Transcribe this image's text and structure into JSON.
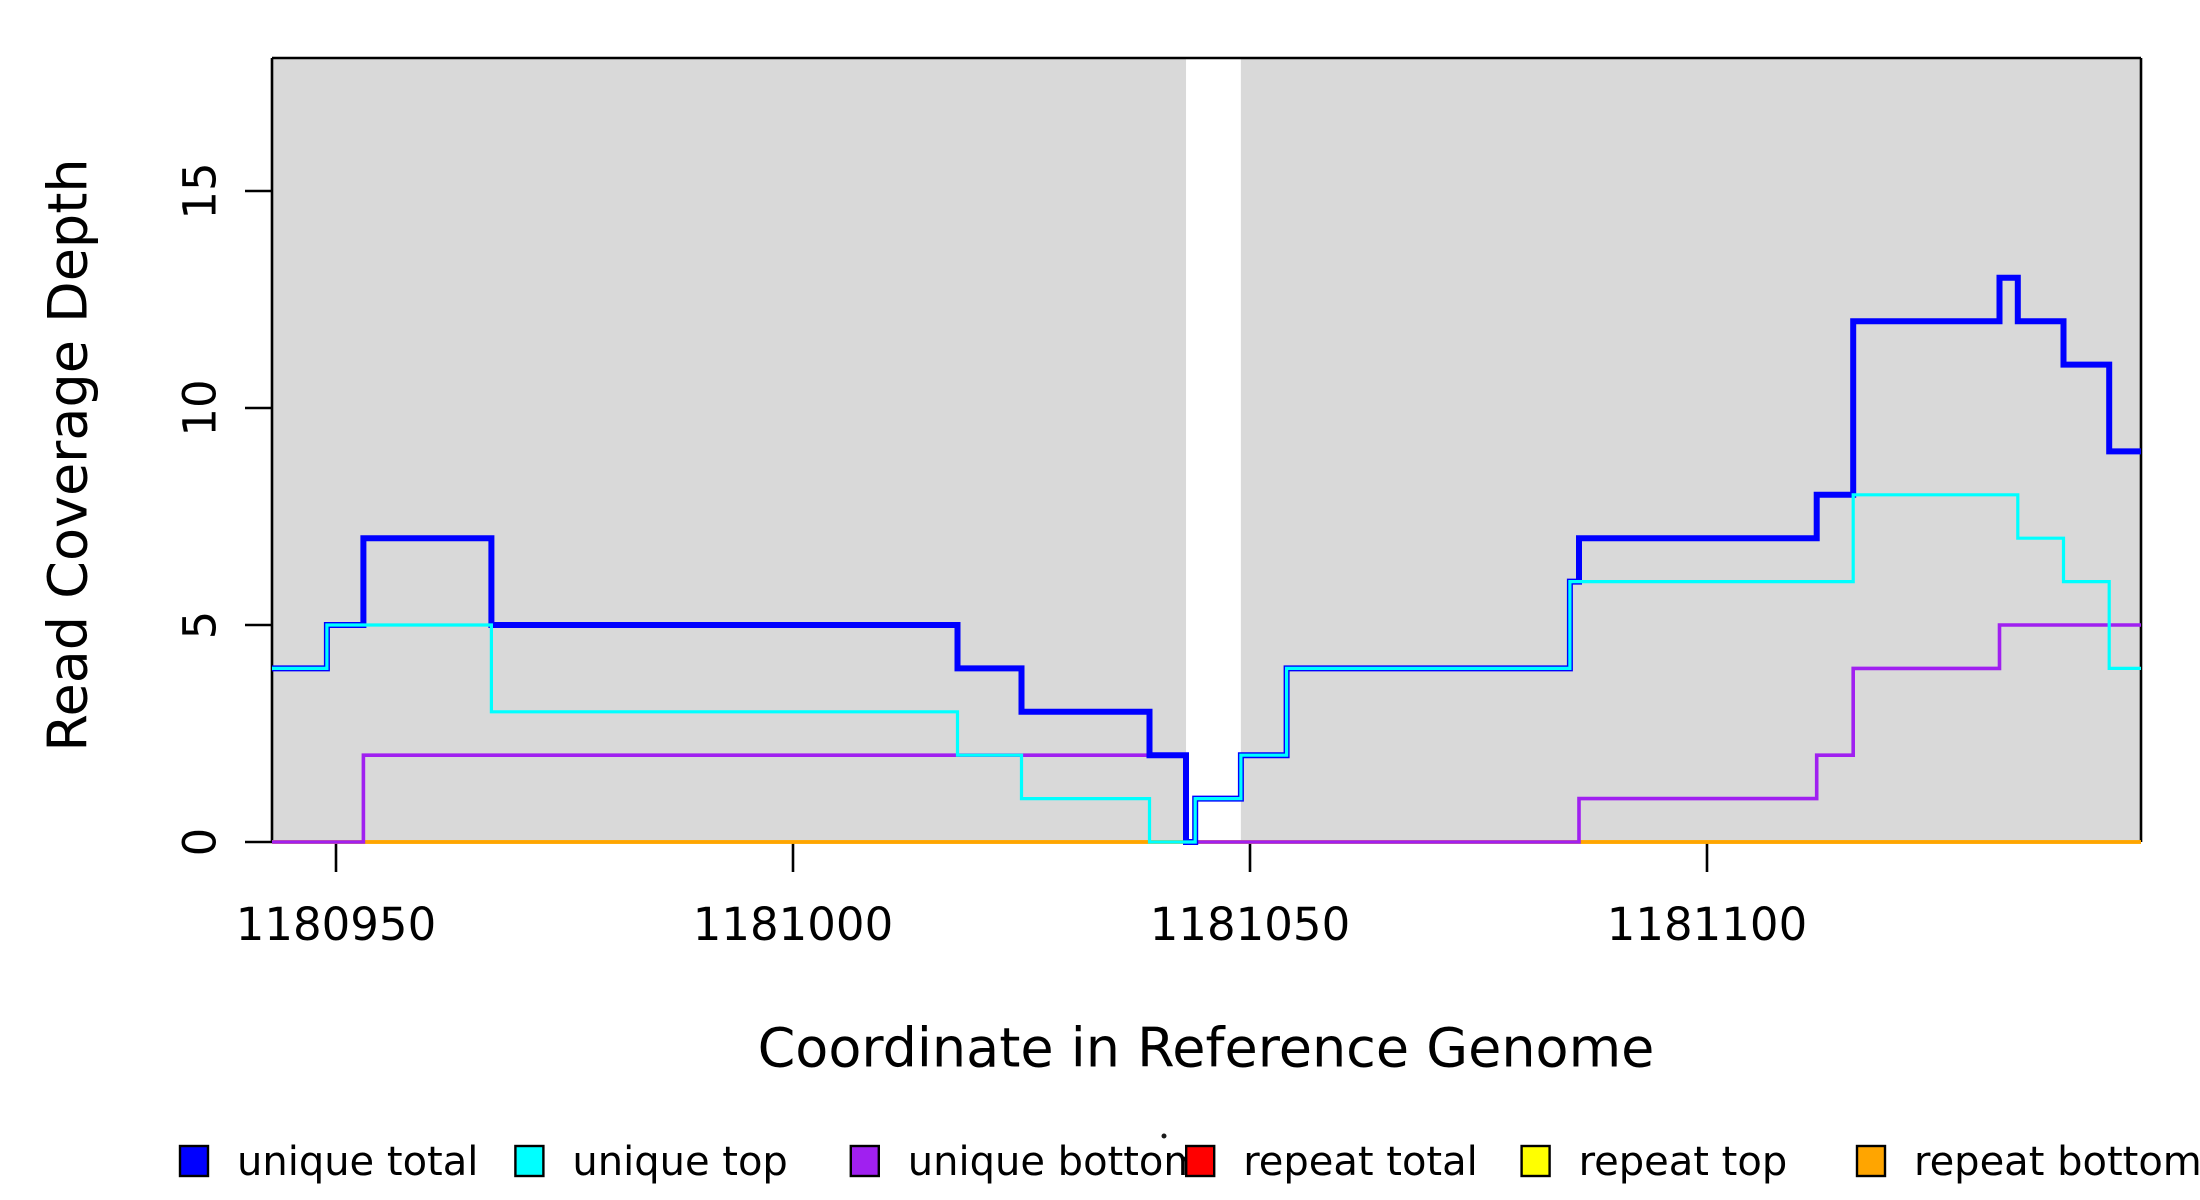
{
  "figure": {
    "xlabel": "Coordinate in Reference Genome",
    "ylabel": "Read Coverage Depth"
  },
  "chart_data": {
    "type": "line",
    "subtype": "step-coverage",
    "title": "",
    "xlabel": "Coordinate in Reference Genome",
    "ylabel": "Read Coverage Depth",
    "xlim": [
      1180943,
      1181148
    ],
    "ylim": [
      0,
      18
    ],
    "x_ticks": [
      "1180950",
      "1181000",
      "1181050",
      "1181100"
    ],
    "x_tick_values": [
      1180950,
      1181000,
      1181050,
      1181100
    ],
    "y_ticks": [
      "0",
      "5",
      "10",
      "15"
    ],
    "y_tick_values": [
      0,
      5,
      10,
      15
    ],
    "grid": false,
    "plot_background_color": "#D9D9D9",
    "masked_gap": {
      "x_from": 1181043,
      "x_to": 1181049,
      "color": "#FFFFFF"
    },
    "background_regions": [
      [
        1180943,
        1181043
      ],
      [
        1181049,
        1181148
      ]
    ],
    "series": [
      {
        "name": "unique total",
        "color": "#0000FF",
        "points": [
          [
            1180943,
            4
          ],
          [
            1180949,
            5
          ],
          [
            1180953,
            7
          ],
          [
            1180967,
            5
          ],
          [
            1181018,
            4
          ],
          [
            1181025,
            3
          ],
          [
            1181039,
            2
          ],
          [
            1181043,
            0
          ],
          [
            1181044,
            1
          ],
          [
            1181049,
            2
          ],
          [
            1181054,
            4
          ],
          [
            1181085,
            6
          ],
          [
            1181086,
            7
          ],
          [
            1181112,
            8
          ],
          [
            1181116,
            12
          ],
          [
            1181132,
            13
          ],
          [
            1181134,
            12
          ],
          [
            1181139,
            11
          ],
          [
            1181144,
            9
          ],
          [
            1181148,
            9
          ]
        ]
      },
      {
        "name": "unique top",
        "color": "#00FFFF",
        "points": [
          [
            1180943,
            4
          ],
          [
            1180949,
            5
          ],
          [
            1180967,
            3
          ],
          [
            1181018,
            2
          ],
          [
            1181025,
            1
          ],
          [
            1181039,
            0
          ],
          [
            1181044,
            1
          ],
          [
            1181049,
            2
          ],
          [
            1181054,
            4
          ],
          [
            1181085,
            6
          ],
          [
            1181116,
            8
          ],
          [
            1181134,
            7
          ],
          [
            1181139,
            6
          ],
          [
            1181144,
            4
          ],
          [
            1181148,
            4
          ]
        ]
      },
      {
        "name": "unique bottom",
        "color": "#A020F0",
        "points": [
          [
            1180943,
            0
          ],
          [
            1180953,
            2
          ],
          [
            1181043,
            0
          ],
          [
            1181086,
            1
          ],
          [
            1181112,
            2
          ],
          [
            1181116,
            4
          ],
          [
            1181132,
            5
          ],
          [
            1181148,
            5
          ]
        ]
      },
      {
        "name": "repeat total",
        "color": "#FF0000",
        "points": [
          [
            1180943,
            0
          ],
          [
            1181148,
            0
          ]
        ]
      },
      {
        "name": "repeat top",
        "color": "#FFFF00",
        "points": [
          [
            1180943,
            0
          ],
          [
            1181148,
            0
          ]
        ]
      },
      {
        "name": "repeat bottom",
        "color": "#FFA500",
        "points": [
          [
            1180943,
            0
          ],
          [
            1181148,
            0
          ]
        ]
      }
    ],
    "legend": {
      "position": "bottom",
      "items": [
        {
          "label": "unique total",
          "color": "#0000FF"
        },
        {
          "label": "unique top",
          "color": "#00FFFF"
        },
        {
          "label": "unique bottom",
          "color": "#A020F0"
        },
        {
          "label": "repeat total",
          "color": "#FF0000"
        },
        {
          "label": "repeat top",
          "color": "#FFFF00"
        },
        {
          "label": "repeat bottom",
          "color": "#FFA500"
        }
      ]
    }
  }
}
